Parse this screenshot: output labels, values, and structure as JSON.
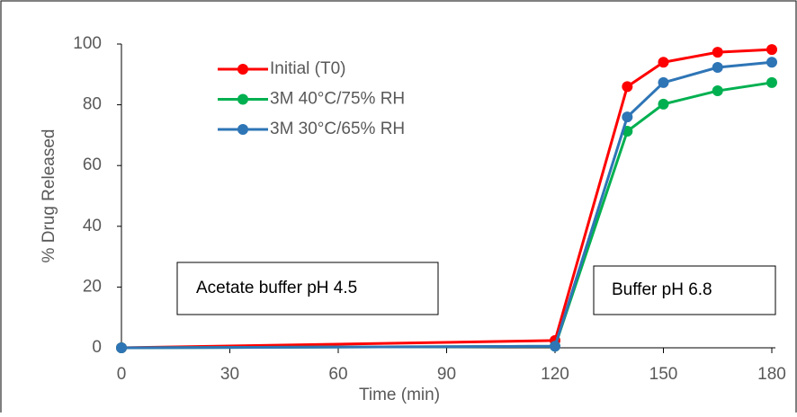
{
  "chart_data": {
    "type": "line",
    "x_label": "Time (min)",
    "y_label": "% Drug Released",
    "x": [
      0,
      120,
      140,
      150,
      165,
      180
    ],
    "series": [
      {
        "name": "Initial (T0)",
        "color": "#ff0000",
        "values": [
          0,
          2.4,
          86,
          94,
          97.3,
          98.2
        ]
      },
      {
        "name": "3M 40°C/75% RH",
        "color": "#00b050",
        "values": [
          0,
          0.5,
          71.3,
          80.2,
          84.6,
          87.3
        ]
      },
      {
        "name": "3M 30°C/65% RH",
        "color": "#2e75b6",
        "values": [
          0,
          0.5,
          76,
          87.3,
          92.3,
          94
        ]
      }
    ],
    "xlim": [
      0,
      180
    ],
    "xticks": [
      0,
      30,
      60,
      90,
      120,
      150,
      180
    ],
    "ylim": [
      0,
      100
    ],
    "yticks": [
      0,
      20,
      40,
      60,
      80,
      100
    ],
    "legend": "upper left",
    "annotations": [
      "Acetate buffer pH 4.5",
      "Buffer pH 6.8"
    ]
  }
}
